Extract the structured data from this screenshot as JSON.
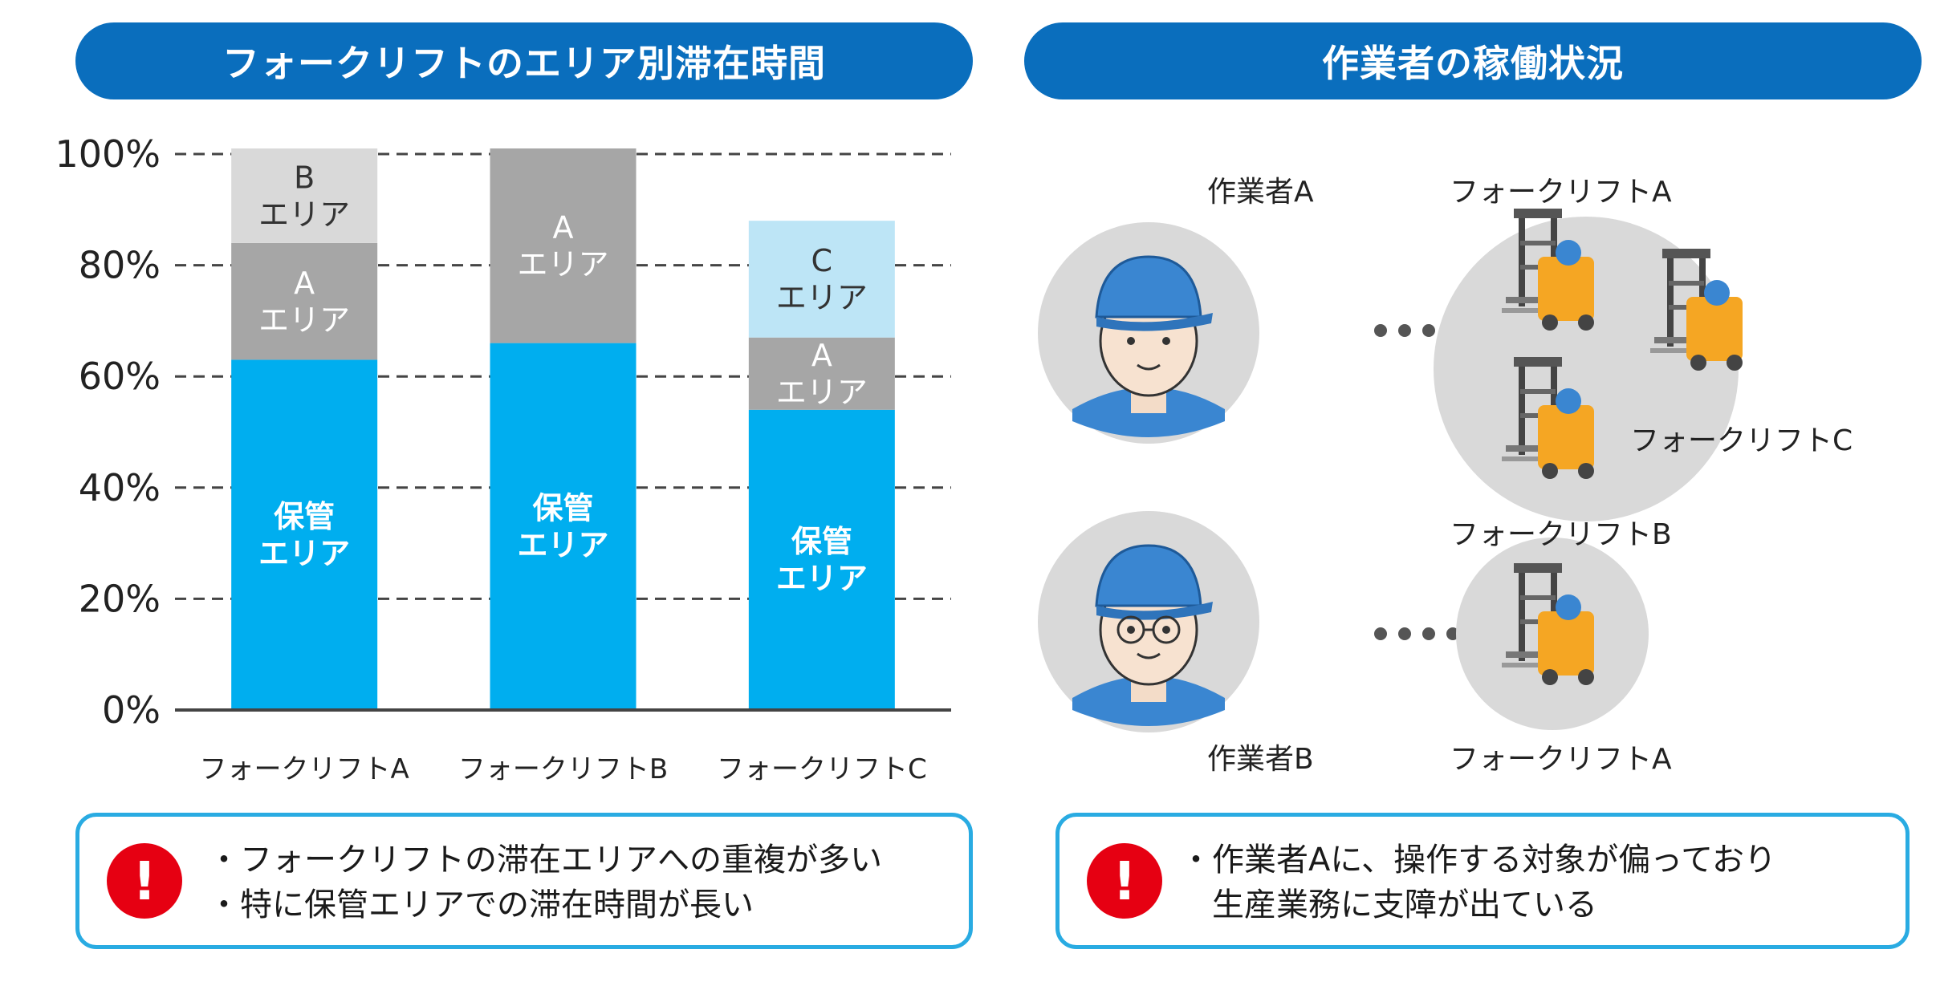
{
  "left_title": "フォークリフトのエリア別滞在時間",
  "right_title": "作業者の稼働状況",
  "chart_data": {
    "type": "bar",
    "stacked": true,
    "categories": [
      "フォークリフトA",
      "フォークリフトB",
      "フォークリフトC"
    ],
    "series": [
      {
        "name": "保管\nエリア",
        "color": "#00aeef",
        "label_color": "#ffffff",
        "values": [
          63,
          66,
          54
        ]
      },
      {
        "name": "A\nエリア",
        "color": "#a6a6a6",
        "label_color": "#ffffff",
        "values": [
          21,
          35,
          13
        ]
      },
      {
        "name": "C\nエリア",
        "color": "#bde5f6",
        "label_color": "#333333",
        "values": [
          0,
          0,
          21
        ]
      },
      {
        "name": "B\nエリア",
        "color": "#d9d9d9",
        "label_color": "#333333",
        "values": [
          17,
          0,
          0
        ]
      }
    ],
    "ylim": [
      0,
      100
    ],
    "yticks": [
      "0%",
      "20%",
      "40%",
      "60%",
      "80%",
      "100%"
    ],
    "grid": true
  },
  "left_note": {
    "icon": "exclamation-icon",
    "lines": [
      "・フォークリフトの滞在エリアへの重複が多い",
      "・特に保管エリアでの滞在時間が長い"
    ]
  },
  "workers": {
    "worker_a": "作業者A",
    "worker_b": "作業者B",
    "forklift_a_top": "フォークリフトA",
    "forklift_b": "フォークリフトB",
    "forklift_c": "フォークリフトC",
    "forklift_a_bottom": "フォークリフトA"
  },
  "right_note": {
    "icon": "exclamation-icon",
    "lines": [
      "・作業者Aに、操作する対象が偏っており",
      "　生産業務に支障が出ている"
    ]
  },
  "colors": {
    "title_bg": "#0a6ebd",
    "note_border": "#29abe2",
    "alert": "#e60012",
    "avatar_bg": "#d9d9d9",
    "forklift_body": "#f5a623",
    "cap": "#3a86d1"
  }
}
